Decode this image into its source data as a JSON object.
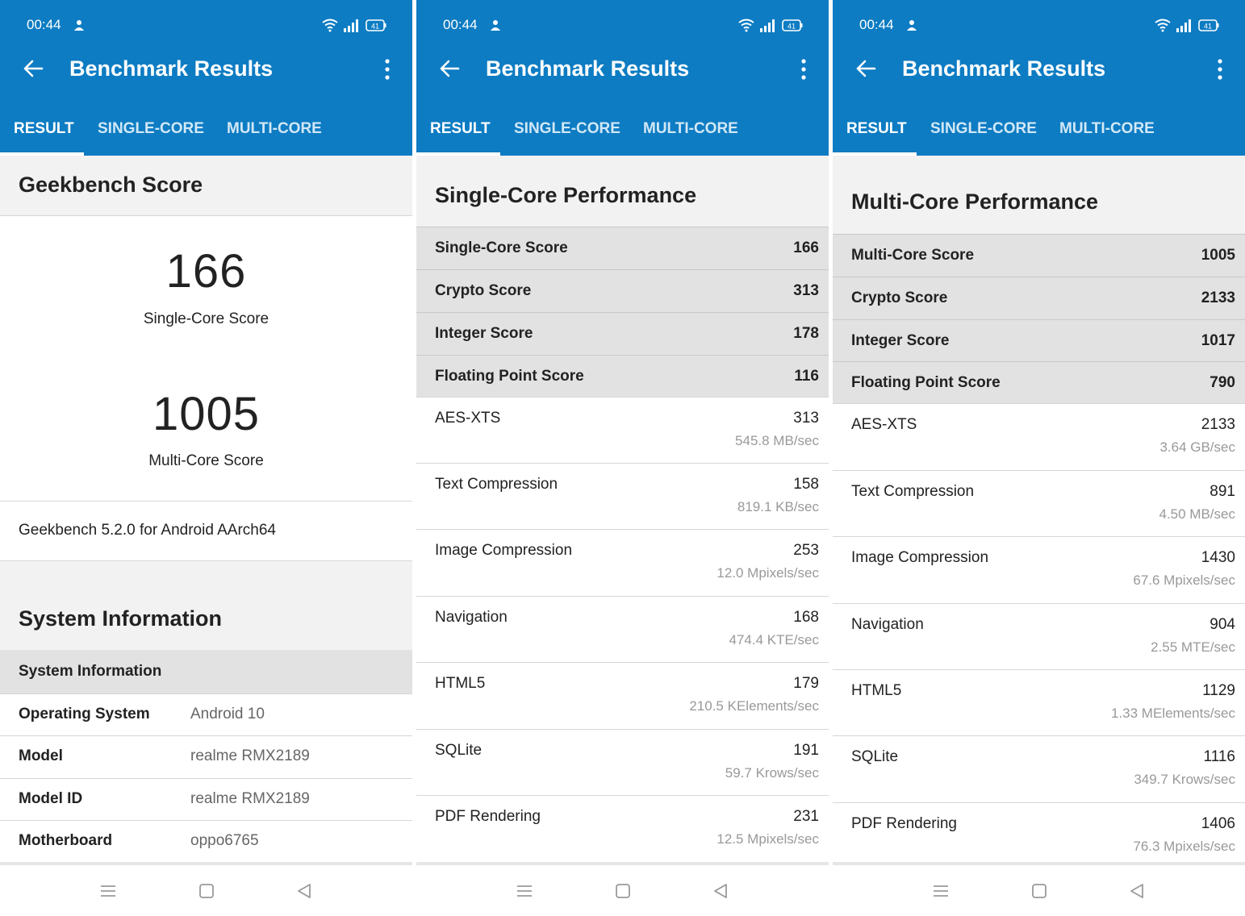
{
  "status": {
    "time": "00:44",
    "battery": "41"
  },
  "app": {
    "title": "Benchmark Results"
  },
  "tabs": [
    "RESULT",
    "SINGLE-CORE",
    "MULTI-CORE"
  ],
  "result": {
    "section_title": "Geekbench Score",
    "single_core_score": "166",
    "single_core_label": "Single-Core Score",
    "multi_core_score": "1005",
    "multi_core_label": "Multi-Core Score",
    "version": "Geekbench 5.2.0 for Android AArch64",
    "system_title": "System Information",
    "system_header": "System Information",
    "system_rows": [
      {
        "key": "Operating System",
        "value": "Android 10"
      },
      {
        "key": "Model",
        "value": "realme RMX2189"
      },
      {
        "key": "Model ID",
        "value": "realme RMX2189"
      },
      {
        "key": "Motherboard",
        "value": "oppo6765"
      }
    ]
  },
  "single": {
    "section_title": "Single-Core Performance",
    "scores": [
      {
        "name": "Single-Core Score",
        "value": "166"
      },
      {
        "name": "Crypto Score",
        "value": "313"
      },
      {
        "name": "Integer Score",
        "value": "178"
      },
      {
        "name": "Floating Point Score",
        "value": "116"
      }
    ],
    "benchmarks": [
      {
        "name": "AES-XTS",
        "score": "313",
        "rate": "545.8 MB/sec"
      },
      {
        "name": "Text Compression",
        "score": "158",
        "rate": "819.1 KB/sec"
      },
      {
        "name": "Image Compression",
        "score": "253",
        "rate": "12.0 Mpixels/sec"
      },
      {
        "name": "Navigation",
        "score": "168",
        "rate": "474.4 KTE/sec"
      },
      {
        "name": "HTML5",
        "score": "179",
        "rate": "210.5 KElements/sec"
      },
      {
        "name": "SQLite",
        "score": "191",
        "rate": "59.7 Krows/sec"
      },
      {
        "name": "PDF Rendering",
        "score": "231",
        "rate": "12.5 Mpixels/sec"
      }
    ]
  },
  "multi": {
    "section_title": "Multi-Core Performance",
    "scores": [
      {
        "name": "Multi-Core Score",
        "value": "1005"
      },
      {
        "name": "Crypto Score",
        "value": "2133"
      },
      {
        "name": "Integer Score",
        "value": "1017"
      },
      {
        "name": "Floating Point Score",
        "value": "790"
      }
    ],
    "benchmarks": [
      {
        "name": "AES-XTS",
        "score": "2133",
        "rate": "3.64 GB/sec"
      },
      {
        "name": "Text Compression",
        "score": "891",
        "rate": "4.50 MB/sec"
      },
      {
        "name": "Image Compression",
        "score": "1430",
        "rate": "67.6 Mpixels/sec"
      },
      {
        "name": "Navigation",
        "score": "904",
        "rate": "2.55 MTE/sec"
      },
      {
        "name": "HTML5",
        "score": "1129",
        "rate": "1.33 MElements/sec"
      },
      {
        "name": "SQLite",
        "score": "1116",
        "rate": "349.7 Krows/sec"
      },
      {
        "name": "PDF Rendering",
        "score": "1406",
        "rate": "76.3 Mpixels/sec"
      }
    ]
  },
  "colors": {
    "appbar": "#0d7cc3",
    "score_row": "#e2e2e2"
  }
}
